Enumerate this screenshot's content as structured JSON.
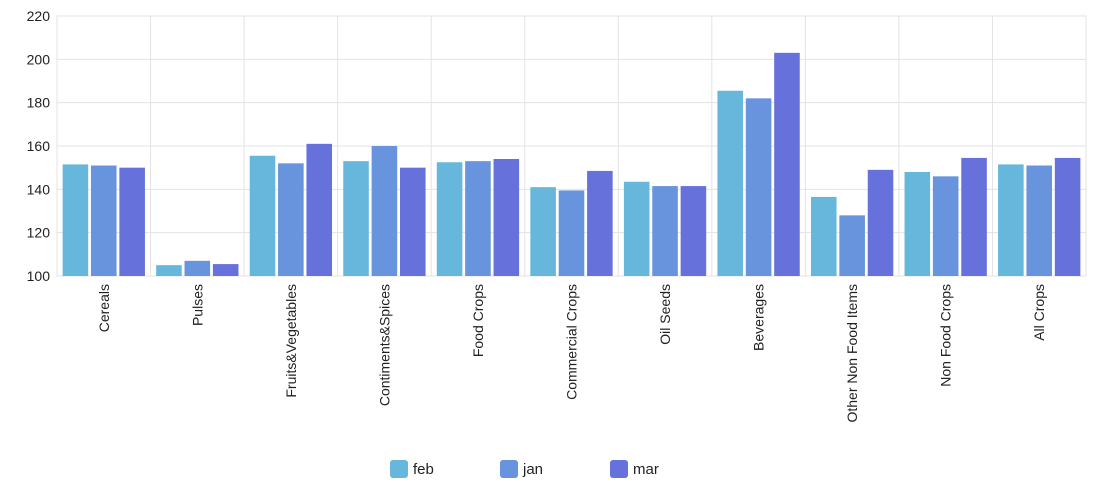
{
  "chart_data": {
    "type": "bar",
    "categories": [
      "Cereals",
      "Pulses",
      "Fruits&Vegetables",
      "Contiments&Spices",
      "Food Crops",
      "Commercial Crops",
      "Oil Seeds",
      "Beverages",
      "Other Non Food Items",
      "Non Food Crops",
      "All Crops"
    ],
    "series": [
      {
        "name": "feb",
        "color": "#67b7dc",
        "values": [
          151.5,
          105,
          155.5,
          153,
          152.5,
          141,
          143.5,
          185.5,
          136.5,
          148,
          151.5
        ]
      },
      {
        "name": "jan",
        "color": "#6794dc",
        "values": [
          151,
          107,
          152,
          160,
          153,
          139.5,
          141.5,
          182,
          128,
          146,
          151
        ]
      },
      {
        "name": "mar",
        "color": "#6771dc",
        "values": [
          150,
          105.5,
          161,
          150,
          154,
          148.5,
          141.5,
          203,
          149,
          154.5,
          154.5
        ]
      }
    ],
    "ylim": [
      100,
      220
    ],
    "yticks": [
      100,
      120,
      140,
      160,
      180,
      200,
      220
    ],
    "grid": true,
    "legend": "bottom-center",
    "title": "",
    "xlabel": "",
    "ylabel": ""
  }
}
